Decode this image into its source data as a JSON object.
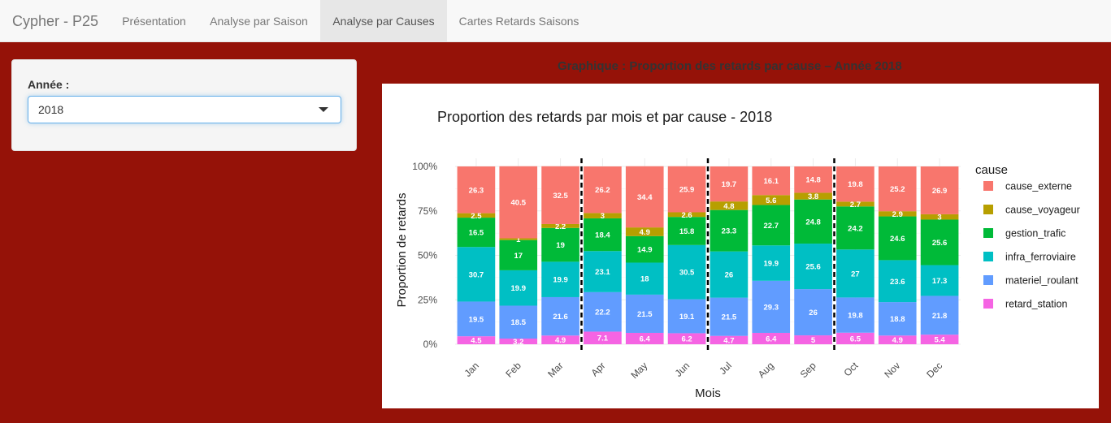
{
  "navbar": {
    "brand": "Cypher - P25",
    "tabs": [
      {
        "label": "Présentation",
        "active": false
      },
      {
        "label": "Analyse par Saison",
        "active": false
      },
      {
        "label": "Analyse par Causes",
        "active": true
      },
      {
        "label": "Cartes Retards Saisons",
        "active": false
      }
    ]
  },
  "sidebar": {
    "year_label": "Année :",
    "year_value": "2018"
  },
  "main": {
    "section_title": "Graphique : Proportion des retards par cause – Année 2018"
  },
  "colors": {
    "page_background": "#951208",
    "cause_externe": "#F8766D",
    "cause_voyageur": "#B79F00",
    "gestion_trafic": "#00BA38",
    "infra_ferroviaire": "#00BFC4",
    "materiel_roulant": "#619CFF",
    "retard_station": "#F564E3"
  },
  "chart_data": {
    "type": "bar",
    "stacked": true,
    "title": "Proportion des retards par mois et par cause - 2018",
    "xlabel": "Mois",
    "ylabel": "Proportion de retards",
    "ylim": [
      0,
      100
    ],
    "yticks": [
      "0%",
      "25%",
      "50%",
      "75%",
      "100%"
    ],
    "ytick_values": [
      0,
      25,
      50,
      75,
      100
    ],
    "legend_title": "cause",
    "legend_position": "right",
    "season_separators_after": [
      "Mar",
      "Jun",
      "Sep"
    ],
    "categories": [
      "Jan",
      "Feb",
      "Mar",
      "Apr",
      "May",
      "Jun",
      "Jul",
      "Aug",
      "Sep",
      "Oct",
      "Nov",
      "Dec"
    ],
    "series": [
      {
        "name": "retard_station",
        "values": [
          4.5,
          3.2,
          4.9,
          7.1,
          6.4,
          6.2,
          4.7,
          6.4,
          5,
          6.5,
          4.9,
          5.4
        ]
      },
      {
        "name": "materiel_roulant",
        "values": [
          19.5,
          18.5,
          21.6,
          22.2,
          21.5,
          19.1,
          21.5,
          29.3,
          26,
          19.8,
          18.8,
          21.8
        ]
      },
      {
        "name": "infra_ferroviaire",
        "values": [
          30.7,
          19.9,
          19.9,
          23.1,
          18,
          30.5,
          26,
          19.9,
          25.6,
          27,
          23.6,
          17.3
        ]
      },
      {
        "name": "gestion_trafic",
        "values": [
          16.5,
          17,
          19,
          18.4,
          14.9,
          15.8,
          23.3,
          22.7,
          24.8,
          24.2,
          24.6,
          25.6
        ]
      },
      {
        "name": "cause_voyageur",
        "values": [
          2.5,
          1,
          2.2,
          3,
          4.9,
          2.6,
          4.8,
          5.6,
          3.8,
          2.7,
          2.9,
          3
        ]
      },
      {
        "name": "cause_externe",
        "values": [
          26.3,
          40.5,
          32.5,
          26.2,
          34.4,
          25.9,
          19.7,
          16.1,
          14.8,
          19.8,
          25.2,
          26.9
        ]
      }
    ],
    "legend_order": [
      "cause_externe",
      "cause_voyageur",
      "gestion_trafic",
      "infra_ferroviaire",
      "materiel_roulant",
      "retard_station"
    ]
  }
}
